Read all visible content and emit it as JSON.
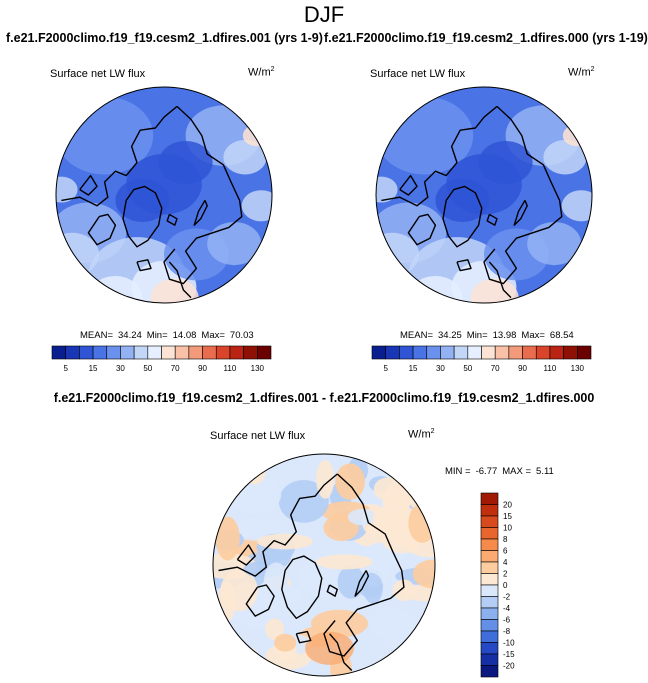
{
  "figure": {
    "season": "DJF",
    "panel_left_title": "f.e21.F2000climo.f19_f19.cesm2_1.dfires.001 (yrs 1-9)",
    "panel_right_title": "f.e21.F2000climo.f19_f19.cesm2_1.dfires.000 (yrs 1-19)",
    "diff_title": "f.e21.F2000climo.f19_f19.cesm2_1.dfires.001 - f.e21.F2000climo.f19_f19.cesm2_1.dfires.000"
  },
  "chart_data": [
    {
      "type": "heatmap",
      "projection": "north-polar-stereographic",
      "variable": "Surface net LW flux",
      "units": "W/m",
      "units_exp": "2",
      "stats": {
        "mean_label": "MEAN=",
        "mean": "34.24",
        "min_label": "Min=",
        "min": "14.08",
        "max_label": "Max=",
        "max": "70.03"
      },
      "colorbar": {
        "levels": [
          5,
          10,
          15,
          20,
          30,
          40,
          50,
          60,
          70,
          80,
          90,
          100,
          110,
          120,
          130
        ],
        "tick_labels": [
          "5",
          "15",
          "30",
          "50",
          "70",
          "90",
          "110",
          "130"
        ],
        "colors": [
          "#0a1f8f",
          "#1836b5",
          "#2f55d6",
          "#4a73e6",
          "#6b91ee",
          "#93b2f3",
          "#c2d6f8",
          "#e6efff",
          "#fde3d4",
          "#f9c1a7",
          "#f39a7b",
          "#e96c4e",
          "#d9442b",
          "#bb2412",
          "#8f1004",
          "#6a0000"
        ]
      }
    },
    {
      "type": "heatmap",
      "projection": "north-polar-stereographic",
      "variable": "Surface net LW flux",
      "units": "W/m",
      "units_exp": "2",
      "stats": {
        "mean_label": "MEAN=",
        "mean": "34.25",
        "min_label": "Min=",
        "min": "13.98",
        "max_label": "Max=",
        "max": "68.54"
      },
      "colorbar": {
        "levels": [
          5,
          10,
          15,
          20,
          30,
          40,
          50,
          60,
          70,
          80,
          90,
          100,
          110,
          120,
          130
        ],
        "tick_labels": [
          "5",
          "15",
          "30",
          "50",
          "70",
          "90",
          "110",
          "130"
        ],
        "colors": [
          "#0a1f8f",
          "#1836b5",
          "#2f55d6",
          "#4a73e6",
          "#6b91ee",
          "#93b2f3",
          "#c2d6f8",
          "#e6efff",
          "#fde3d4",
          "#f9c1a7",
          "#f39a7b",
          "#e96c4e",
          "#d9442b",
          "#bb2412",
          "#8f1004",
          "#6a0000"
        ]
      }
    },
    {
      "type": "heatmap",
      "projection": "north-polar-stereographic",
      "variable": "Surface net LW flux",
      "units": "W/m",
      "units_exp": "2",
      "stats": {
        "min_label": "MIN =",
        "min": "-6.77",
        "max_label": "MAX =",
        "max": "5.11"
      },
      "colorbar": {
        "orientation": "vertical",
        "tick_labels": [
          "20",
          "15",
          "10",
          "8",
          "6",
          "4",
          "2",
          "0",
          "-2",
          "-4",
          "-6",
          "-8",
          "-10",
          "-15",
          "-20"
        ],
        "colors": [
          "#a01a06",
          "#c0300e",
          "#d84a1e",
          "#e8652e",
          "#f58a4a",
          "#fbab72",
          "#fdcc9f",
          "#fde8d3",
          "#dbe8fb",
          "#b3cdf5",
          "#8ab0ee",
          "#6390e6",
          "#3f6edb",
          "#2549c4",
          "#1530a5",
          "#0b1880"
        ]
      }
    }
  ]
}
